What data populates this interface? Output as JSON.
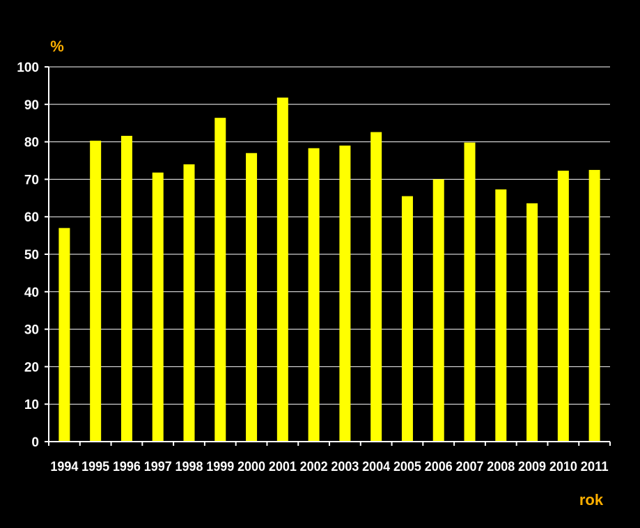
{
  "chart_data": {
    "type": "bar",
    "title": "",
    "ylabel": "%",
    "xlabel": "rok",
    "categories": [
      "1994",
      "1995",
      "1996",
      "1997",
      "1998",
      "1999",
      "2000",
      "2001",
      "2002",
      "2003",
      "2004",
      "2005",
      "2006",
      "2007",
      "2008",
      "2009",
      "2010",
      "2011"
    ],
    "values": [
      57,
      80.3,
      81.6,
      71.8,
      74,
      86.4,
      77,
      91.8,
      78.3,
      79,
      82.6,
      65.5,
      70,
      79.8,
      67.3,
      63.6,
      72.3,
      72.5
    ],
    "ylim": [
      0,
      100
    ],
    "yticks": [
      0,
      10,
      20,
      30,
      40,
      50,
      60,
      70,
      80,
      90,
      100
    ],
    "grid": true,
    "legend": "none",
    "colors": {
      "bar": "#ffff00",
      "background": "#000000",
      "grid": "#ffffff",
      "axis": "#ffffff",
      "tick_text": "#ffffff",
      "unit_text": "#ffb000"
    }
  }
}
